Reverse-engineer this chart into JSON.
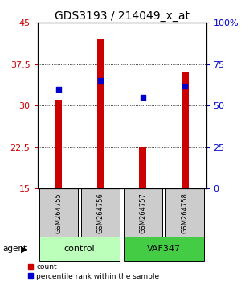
{
  "title": "GDS3193 / 214049_x_at",
  "samples": [
    "GSM264755",
    "GSM264756",
    "GSM264757",
    "GSM264758"
  ],
  "bar_values": [
    31.0,
    42.0,
    22.5,
    36.0
  ],
  "dot_values_pct": [
    60,
    65,
    55,
    62
  ],
  "ylim_left": [
    15,
    45
  ],
  "ylim_right": [
    0,
    100
  ],
  "yticks_left": [
    15,
    22.5,
    30,
    37.5,
    45
  ],
  "yticks_right": [
    0,
    25,
    50,
    75,
    100
  ],
  "ytick_labels_left": [
    "15",
    "22.5",
    "30",
    "37.5",
    "45"
  ],
  "ytick_labels_right": [
    "0",
    "25",
    "50",
    "75",
    "100%"
  ],
  "bar_color": "#cc0000",
  "dot_color": "#0000cc",
  "bar_width": 0.18,
  "groups": [
    {
      "label": "control",
      "samples": [
        0,
        1
      ],
      "color": "#bbffbb"
    },
    {
      "label": "VAF347",
      "samples": [
        2,
        3
      ],
      "color": "#44cc44"
    }
  ],
  "agent_label": "agent",
  "legend_count_label": "count",
  "legend_pct_label": "percentile rank within the sample",
  "bg_color": "#ffffff",
  "sample_box_color": "#cccccc",
  "title_fontsize": 10,
  "tick_fontsize": 8
}
